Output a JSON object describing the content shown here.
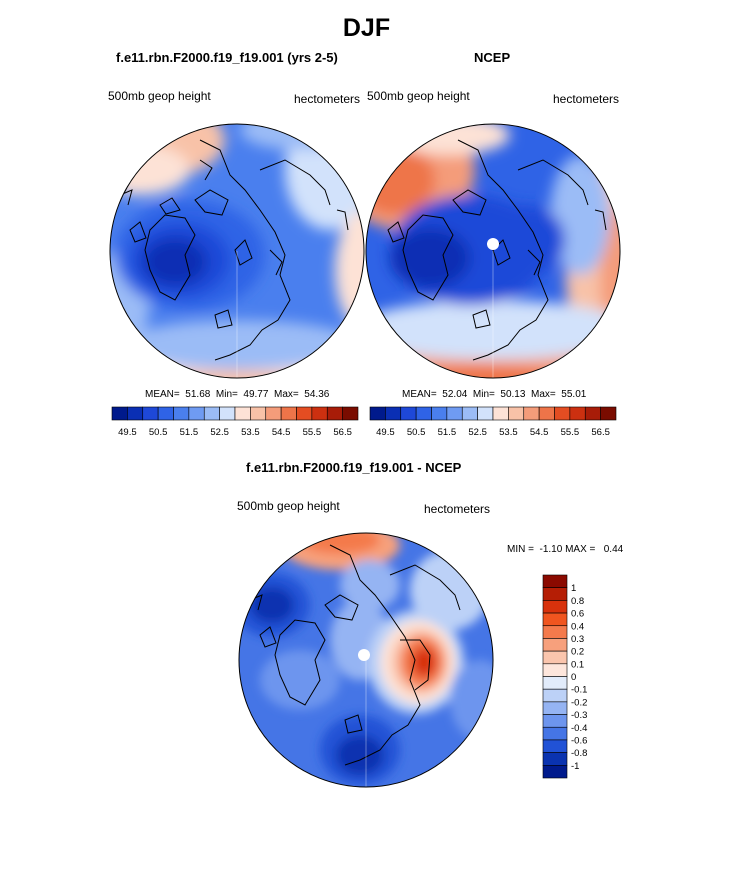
{
  "page_title": "DJF",
  "chart_data": [
    {
      "type": "heatmap",
      "projection": "polar-stereographic-north",
      "title": "f.e11.rbn.F2000.f19_f19.001 (yrs 2-5)",
      "left_label": "500mb geop height",
      "right_label": "hectometers",
      "stats": {
        "mean_label": "MEAN=",
        "mean": "51.68",
        "min_label": "Min=",
        "min": "49.77",
        "max_label": "Max=",
        "max": "54.36"
      },
      "levels": [
        "49.5",
        "50.5",
        "51.5",
        "52.5",
        "53.5",
        "54.5",
        "55.5",
        "56.5"
      ],
      "colors": [
        "#001a8c",
        "#0a2fb4",
        "#1e48d8",
        "#2f63e6",
        "#4a7fee",
        "#6f9bf2",
        "#9bbcf6",
        "#d2e2fb",
        "#fde2d6",
        "#f8c2a8",
        "#f49c7a",
        "#ee7449",
        "#e44d22",
        "#cc3010",
        "#a81c08",
        "#7a0c00"
      ]
    },
    {
      "type": "heatmap",
      "projection": "polar-stereographic-north",
      "title": "NCEP",
      "left_label": "500mb geop height",
      "right_label": "hectometers",
      "stats": {
        "mean_label": "MEAN=",
        "mean": "52.04",
        "min_label": "Min=",
        "min": "50.13",
        "max_label": "Max=",
        "max": "55.01"
      },
      "levels": [
        "49.5",
        "50.5",
        "51.5",
        "52.5",
        "53.5",
        "54.5",
        "55.5",
        "56.5"
      ],
      "colors": [
        "#001a8c",
        "#0a2fb4",
        "#1e48d8",
        "#2f63e6",
        "#4a7fee",
        "#6f9bf2",
        "#9bbcf6",
        "#d2e2fb",
        "#fde2d6",
        "#f8c2a8",
        "#f49c7a",
        "#ee7449",
        "#e44d22",
        "#cc3010",
        "#a81c08",
        "#7a0c00"
      ]
    },
    {
      "type": "heatmap",
      "projection": "polar-stereographic-north",
      "title": "f.e11.rbn.F2000.f19_f19.001 - NCEP",
      "left_label": "500mb geop height",
      "right_label": "hectometers",
      "stats": {
        "min_label": "MIN =",
        "min": "-1.10",
        "max_label": "MAX =",
        "max": "0.44"
      },
      "levels": [
        "1",
        "0.8",
        "0.6",
        "0.4",
        "0.3",
        "0.2",
        "0.1",
        "0",
        "-0.1",
        "-0.2",
        "-0.3",
        "-0.4",
        "-0.6",
        "-0.8",
        "-1"
      ],
      "colors": [
        "#8b0a00",
        "#b51e05",
        "#d8320c",
        "#f0551f",
        "#f47a4c",
        "#f7a07c",
        "#fac5ad",
        "#fde6dc",
        "#e2ecfb",
        "#bcd1f7",
        "#95b4f3",
        "#6d95ee",
        "#4575e6",
        "#2152d6",
        "#0a33b0",
        "#001a8c"
      ]
    }
  ]
}
